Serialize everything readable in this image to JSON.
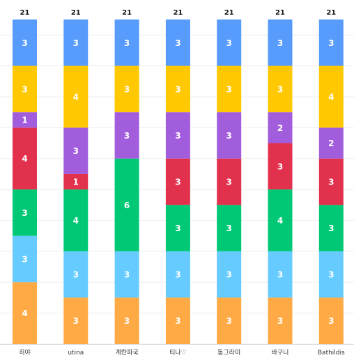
{
  "chart_data": {
    "type": "bar",
    "stacked": true,
    "categories": [
      "히야",
      "utina",
      "계란파국",
      "티나♡",
      "동그라미",
      "바구니",
      "Bathildis"
    ],
    "totals": [
      21,
      21,
      21,
      21,
      21,
      21,
      21
    ],
    "ylim": [
      0,
      21
    ],
    "grid": true,
    "legend": "none",
    "series": [
      {
        "color": "#ffaa44",
        "values": [
          4,
          3,
          3,
          3,
          3,
          3,
          3
        ]
      },
      {
        "color": "#66ccff",
        "values": [
          3,
          3,
          3,
          3,
          3,
          3,
          3
        ]
      },
      {
        "color": "#00c875",
        "values": [
          3,
          4,
          6,
          3,
          3,
          4,
          3
        ]
      },
      {
        "color": "#e2314c",
        "values": [
          4,
          1,
          0,
          3,
          3,
          3,
          3
        ]
      },
      {
        "color": "#a25ddc",
        "values": [
          1,
          3,
          3,
          3,
          3,
          2,
          2
        ]
      },
      {
        "color": "#ffc800",
        "values": [
          3,
          4,
          3,
          3,
          3,
          3,
          4
        ]
      },
      {
        "color": "#579bfc",
        "values": [
          3,
          3,
          3,
          3,
          3,
          3,
          3
        ]
      }
    ]
  }
}
